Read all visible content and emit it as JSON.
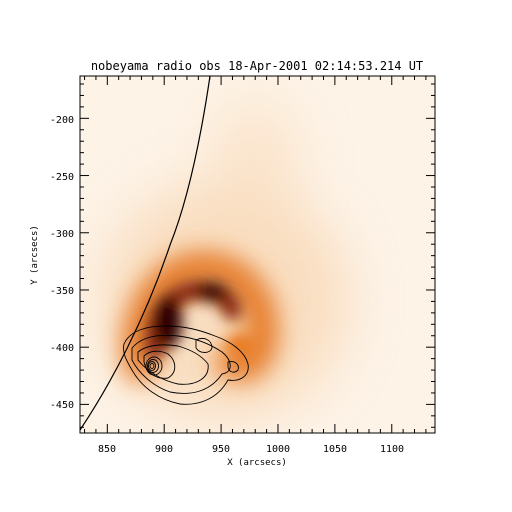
{
  "title": "nobeyama radio obs   18-Apr-2001 02:14:53.214 UT",
  "axes": {
    "x_label": "X (arcsecs)",
    "y_label": "Y (arcsecs)",
    "x_range": [
      826,
      1138
    ],
    "y_range": [
      -475,
      -163
    ],
    "x_ticks": [
      "850",
      "900",
      "950",
      "1000",
      "1050",
      "1100"
    ],
    "y_ticks": [
      "-200",
      "-250",
      "-300",
      "-350",
      "-400",
      "-450"
    ],
    "minor_tick_step": 10
  },
  "image": {
    "colormap": "red-temperature",
    "limb_curve": true,
    "contour_overlay": true
  },
  "colors": {
    "background": "#ffffff",
    "axes": "#000000",
    "limb": "#000000",
    "contours": "#000000",
    "map_low": "#fdf1e4",
    "map_mid": "#e8791f",
    "map_high": "#200404"
  }
}
